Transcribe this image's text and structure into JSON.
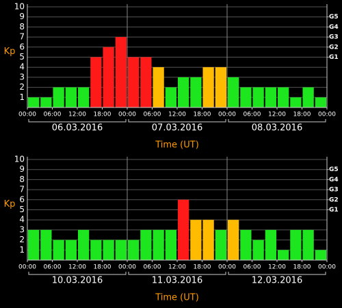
{
  "chart_data": [
    {
      "type": "bar",
      "ylabel": "Kp",
      "xlabel": "Time (UT)",
      "values": [
        1,
        1,
        2,
        2,
        2,
        5,
        6,
        7,
        5,
        5,
        4,
        2,
        3,
        3,
        4,
        4,
        3,
        2,
        2,
        2,
        2,
        1,
        2,
        1
      ],
      "colors": [
        "#1ee61e",
        "#1ee61e",
        "#1ee61e",
        "#1ee61e",
        "#1ee61e",
        "#ff1a1a",
        "#ff1a1a",
        "#ff1a1a",
        "#ff1a1a",
        "#ff1a1a",
        "#ffbb00",
        "#1ee61e",
        "#1ee61e",
        "#1ee61e",
        "#ffbb00",
        "#ffbb00",
        "#1ee61e",
        "#1ee61e",
        "#1ee61e",
        "#1ee61e",
        "#1ee61e",
        "#1ee61e",
        "#1ee61e",
        "#1ee61e"
      ],
      "xticks": [
        "00:00",
        "06:00",
        "12:00",
        "18:00",
        "00:00",
        "06:00",
        "12:00",
        "18:00",
        "00:00",
        "06:00",
        "12:00",
        "18:00",
        "00:00"
      ],
      "days": [
        "06.03.2016",
        "07.03.2016",
        "08.03.2016"
      ],
      "ylim": [
        0,
        10
      ],
      "yticks": [
        1,
        2,
        3,
        4,
        5,
        6,
        7,
        8,
        9,
        10
      ],
      "y2lim": [
        0,
        10
      ],
      "y2ticks": [
        {
          "value": 5,
          "label": "G1"
        },
        {
          "value": 6,
          "label": "G2"
        },
        {
          "value": 7,
          "label": "G3"
        },
        {
          "value": 8,
          "label": "G4"
        },
        {
          "value": 9,
          "label": "G5"
        }
      ],
      "grid": true
    },
    {
      "type": "bar",
      "ylabel": "Kp",
      "xlabel": "Time (UT)",
      "values": [
        3,
        3,
        2,
        2,
        3,
        2,
        2,
        2,
        2,
        3,
        3,
        3,
        6,
        4,
        4,
        3,
        4,
        3,
        2,
        3,
        1,
        3,
        3,
        1
      ],
      "colors": [
        "#1ee61e",
        "#1ee61e",
        "#1ee61e",
        "#1ee61e",
        "#1ee61e",
        "#1ee61e",
        "#1ee61e",
        "#1ee61e",
        "#1ee61e",
        "#1ee61e",
        "#1ee61e",
        "#1ee61e",
        "#ff1a1a",
        "#ffbb00",
        "#ffbb00",
        "#1ee61e",
        "#ffbb00",
        "#1ee61e",
        "#1ee61e",
        "#1ee61e",
        "#1ee61e",
        "#1ee61e",
        "#1ee61e",
        "#1ee61e"
      ],
      "xticks": [
        "00:00",
        "06:00",
        "12:00",
        "18:00",
        "00:00",
        "06:00",
        "12:00",
        "18:00",
        "00:00",
        "06:00",
        "12:00",
        "18:00",
        "00:00"
      ],
      "days": [
        "10.03.2016",
        "11.03.2016",
        "12.03.2016"
      ],
      "ylim": [
        0,
        10
      ],
      "yticks": [
        1,
        2,
        3,
        4,
        5,
        6,
        7,
        8,
        9,
        10
      ],
      "y2lim": [
        0,
        10
      ],
      "y2ticks": [
        {
          "value": 5,
          "label": "G1"
        },
        {
          "value": 6,
          "label": "G2"
        },
        {
          "value": 7,
          "label": "G3"
        },
        {
          "value": 8,
          "label": "G4"
        },
        {
          "value": 9,
          "label": "G5"
        }
      ],
      "grid": true
    }
  ]
}
